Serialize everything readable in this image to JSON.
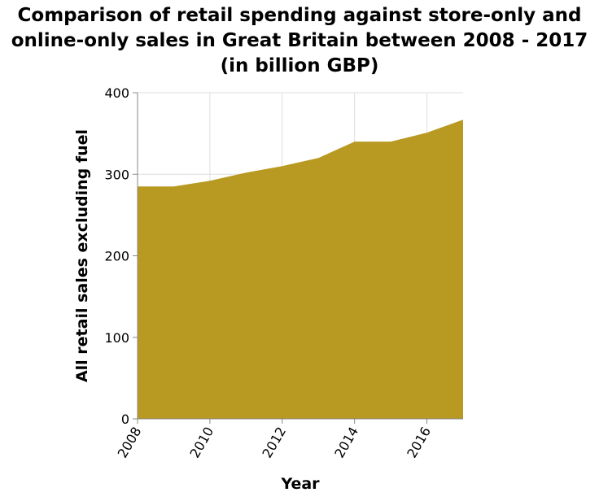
{
  "chart_data": {
    "type": "area",
    "title": "Comparison of retail spending against store-only and online-only sales in Great Britain between 2008 - 2017 (in billion GBP)",
    "xlabel": "Year",
    "ylabel": "All retail sales excluding fuel",
    "x": [
      2008,
      2009,
      2010,
      2011,
      2012,
      2013,
      2014,
      2015,
      2016,
      2017
    ],
    "series": [
      {
        "values": [
          285,
          285,
          292,
          302,
          310,
          320,
          340,
          340,
          351,
          367
        ]
      }
    ],
    "xlim": [
      2008,
      2017
    ],
    "ylim": [
      0,
      400
    ],
    "xticks": [
      2008,
      2010,
      2012,
      2014,
      2016
    ],
    "yticks": [
      0,
      100,
      200,
      300,
      400
    ],
    "grid": true,
    "fill_color": "#b89a22",
    "grid_color": "#dddddd"
  }
}
